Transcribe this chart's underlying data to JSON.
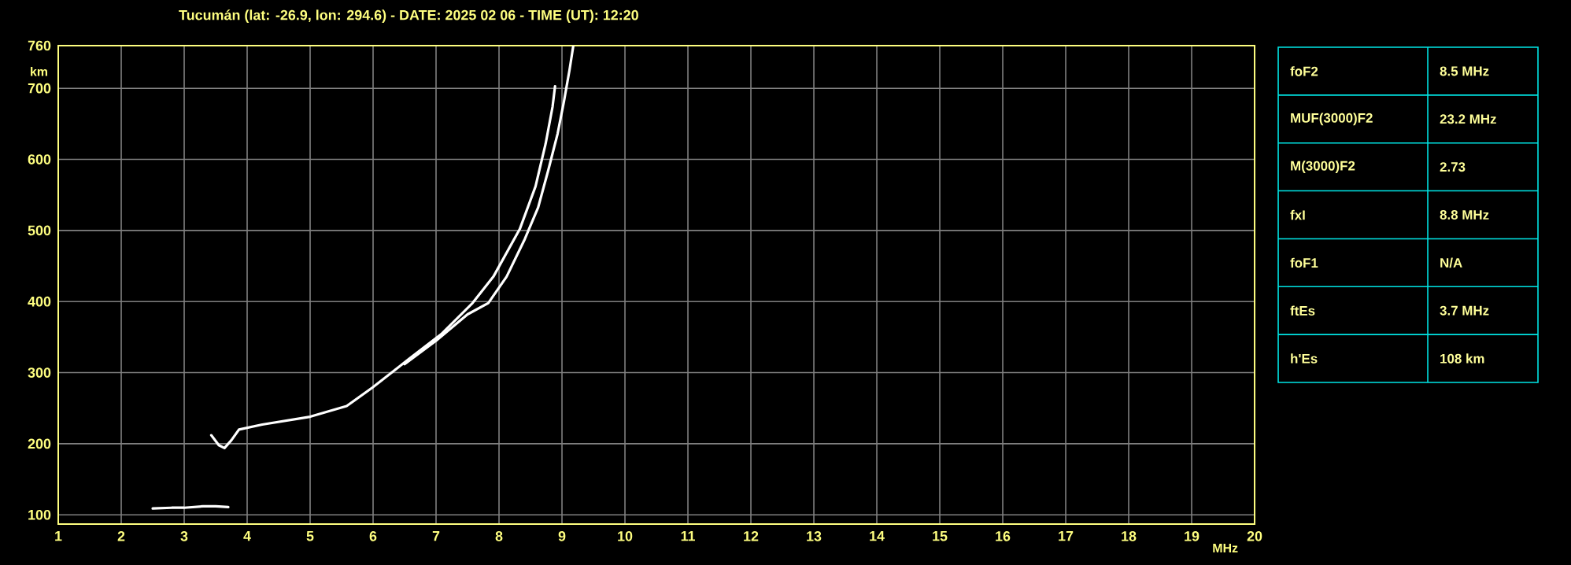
{
  "chart_data": [
    {
      "type": "line",
      "title": "Tucumán (lat: -26.9, lon: 294.6) - DATE: 2025 02 06 - TIME (UT): 12:20",
      "xlabel": "MHz",
      "ylabel": "km",
      "xlim": [
        1,
        20
      ],
      "ylim": [
        87,
        760
      ],
      "xticks": [
        1,
        2,
        3,
        4,
        5,
        6,
        7,
        8,
        9,
        10,
        11,
        12,
        13,
        14,
        15,
        16,
        17,
        18,
        19,
        20
      ],
      "yticks": [
        100,
        200,
        300,
        400,
        500,
        600,
        700,
        760
      ],
      "grid": true,
      "series": [
        {
          "color": "#ffffff",
          "x": [
            2.5,
            2.8,
            3.0,
            3.3,
            3.5,
            3.7
          ],
          "values": [
            109,
            110,
            110,
            112,
            112,
            111
          ]
        },
        {
          "color": "#ffffff",
          "x": [
            3.43,
            3.55,
            3.64,
            3.75,
            3.87,
            4.24,
            5.0,
            5.58,
            5.99,
            6.58,
            7.08,
            7.58,
            7.91,
            8.33,
            8.58,
            8.74,
            8.85,
            8.89
          ],
          "values": [
            212,
            198,
            194,
            205,
            220,
            227,
            238,
            253,
            279,
            320,
            354,
            398,
            435,
            502,
            562,
            622,
            674,
            703
          ]
        },
        {
          "color": "#ffffff",
          "x": [
            6.5,
            7.0,
            7.5,
            7.83,
            8.12,
            8.41,
            8.62,
            8.78,
            8.93,
            9.03,
            9.12,
            9.18
          ],
          "values": [
            312,
            345,
            382,
            398,
            435,
            488,
            532,
            584,
            636,
            681,
            726,
            760
          ]
        }
      ]
    },
    {
      "type": "other",
      "categories": [
        "foF2",
        "MUF(3000)F2",
        "M(3000)F2",
        "fxI",
        "foF1",
        "ftEs",
        "h'Es"
      ],
      "annotations": [
        "8.5 MHz",
        "23.2 MHz",
        "2.73",
        "8.8 MHz",
        "N/A",
        "3.7 MHz",
        "108 km"
      ]
    }
  ]
}
